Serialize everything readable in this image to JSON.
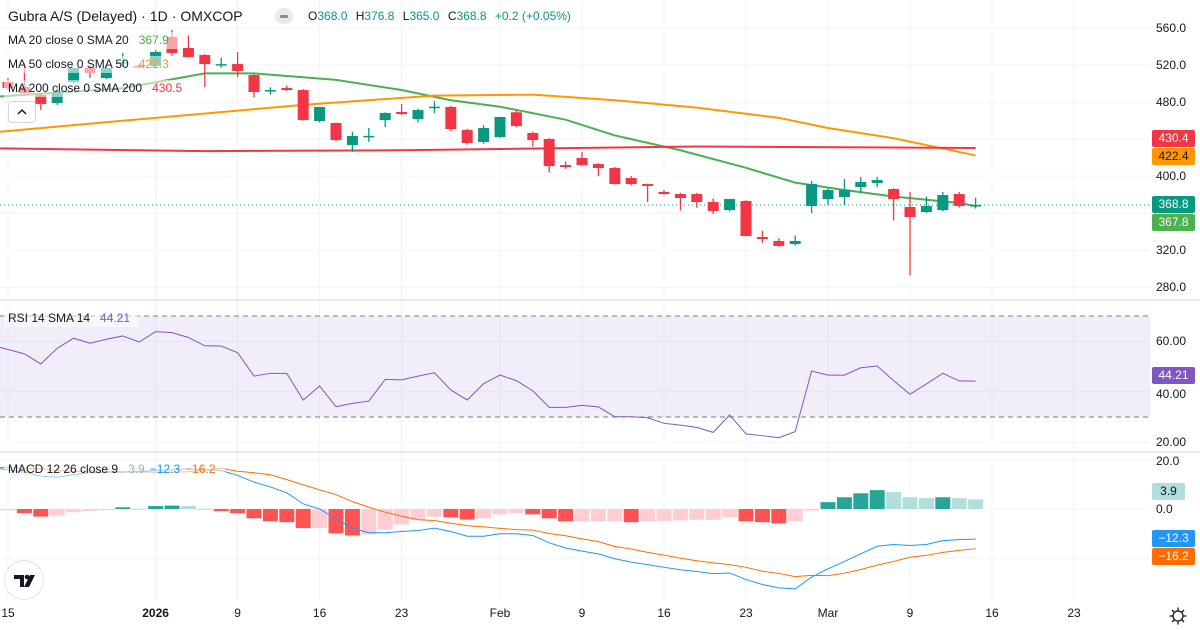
{
  "header": {
    "symbol": "Gubra A/S (Delayed)",
    "separator": "·",
    "interval": "1D",
    "exchange": "OMXCOP",
    "ohlc": {
      "o_label": "O",
      "o": "368.0",
      "h_label": "H",
      "h": "376.8",
      "l_label": "L",
      "l": "365.0",
      "c_label": "C",
      "c": "368.8",
      "change": "+0.2 (+0.05%)"
    }
  },
  "legends": {
    "ma": [
      {
        "label": "MA 20 close 0 SMA 20",
        "value": "367.9",
        "color": "#4caf50"
      },
      {
        "label": "MA 50 close 0 SMA 50",
        "value": "422.3",
        "color": "#ff9800"
      },
      {
        "label": "MA 200 close 0 SMA 200",
        "value": "430.5",
        "color": "#f23645"
      }
    ],
    "rsi": {
      "label": "RSI 14 SMA 14",
      "value": "44.21",
      "color": "#7e57c2"
    },
    "macd": {
      "label": "MACD 12 26 close 9",
      "hist": "3.9",
      "macd": "−12.3",
      "signal": "−16.2"
    }
  },
  "axes": {
    "price_ticks": [
      "560.0",
      "520.0",
      "480.0",
      "400.0",
      "320.0",
      "280.0"
    ],
    "rsi_ticks": [
      "60.00",
      "40.00",
      "20.00"
    ],
    "macd_ticks": [
      "20.0",
      "0.0"
    ],
    "time_ticks": [
      {
        "date": "2025-12-15",
        "label": "15"
      },
      {
        "date": "2026-01-02",
        "label": "2026",
        "bold": true
      },
      {
        "date": "2026-01-09",
        "label": "9"
      },
      {
        "date": "2026-01-16",
        "label": "16"
      },
      {
        "date": "2026-01-23",
        "label": "23"
      },
      {
        "date": "2026-02-02",
        "label": "Feb"
      },
      {
        "date": "2026-02-09",
        "label": "9"
      },
      {
        "date": "2026-02-16",
        "label": "16"
      },
      {
        "date": "2026-02-23",
        "label": "23"
      },
      {
        "date": "2026-03-02",
        "label": "Mar"
      },
      {
        "date": "2026-03-09",
        "label": "9"
      },
      {
        "date": "2026-03-16",
        "label": "16"
      },
      {
        "date": "2026-03-23",
        "label": "23"
      }
    ]
  },
  "badges": {
    "ma200": {
      "text": "430.4",
      "bg": "#f23645",
      "fg": "#ffffff"
    },
    "ma50": {
      "text": "422.4",
      "bg": "#ff9800",
      "fg": "#131722"
    },
    "last": {
      "text": "368.8",
      "bg": "#089981",
      "fg": "#ffffff"
    },
    "ma20": {
      "text": "367.8",
      "bg": "#4caf50",
      "fg": "#ffffff"
    },
    "rsi": {
      "text": "44.21",
      "bg": "#7e57c2",
      "fg": "#ffffff"
    },
    "hist": {
      "text": "3.9",
      "bg": "#b2dfdb",
      "fg": "#131722"
    },
    "macd": {
      "text": "−12.3",
      "bg": "#2196f3",
      "fg": "#ffffff"
    },
    "signal": {
      "text": "−16.2",
      "bg": "#ff6d00",
      "fg": "#ffffff"
    }
  },
  "colors": {
    "up": "#089981",
    "down": "#f23645",
    "ma20": "#4caf50",
    "ma50": "#ff9800",
    "ma200": "#f23645",
    "rsi": "#7e57c2",
    "macd": "#2196f3",
    "signal": "#ff6d00",
    "hist_up_strong": "#26a69a",
    "hist_up_weak": "#b2dfdb",
    "hist_down_strong": "#ff5252",
    "hist_down_weak": "#ffcdd2"
  },
  "icons": {
    "logo": "tradingview-logo",
    "settings": "gear-icon",
    "collapse": "chevron-up-icon",
    "visibility": "eye-toggle-icon"
  },
  "chart_data": [
    {
      "type": "candlestick",
      "pane": "price",
      "ylim": [
        280,
        560
      ],
      "grid": true,
      "last_price": 368.8,
      "dates": [
        "2025-12-15",
        "2025-12-16",
        "2025-12-17",
        "2025-12-18",
        "2025-12-19",
        "2025-12-22",
        "2025-12-23",
        "2025-12-29",
        "2025-12-30",
        "2026-01-02",
        "2026-01-05",
        "2026-01-06",
        "2026-01-07",
        "2026-01-08",
        "2026-01-09",
        "2026-01-12",
        "2026-01-13",
        "2026-01-14",
        "2026-01-15",
        "2026-01-16",
        "2026-01-19",
        "2026-01-20",
        "2026-01-21",
        "2026-01-22",
        "2026-01-23",
        "2026-01-26",
        "2026-01-27",
        "2026-01-28",
        "2026-01-29",
        "2026-01-30",
        "2026-02-02",
        "2026-02-03",
        "2026-02-04",
        "2026-02-05",
        "2026-02-06",
        "2026-02-09",
        "2026-02-10",
        "2026-02-11",
        "2026-02-12",
        "2026-02-13",
        "2026-02-16",
        "2026-02-17",
        "2026-02-18",
        "2026-02-19",
        "2026-02-20",
        "2026-02-23",
        "2026-02-24",
        "2026-02-25",
        "2026-02-26",
        "2026-02-27",
        "2026-03-02",
        "2026-03-03",
        "2026-03-04",
        "2026-03-05",
        "2026-03-06",
        "2026-03-09",
        "2026-03-10",
        "2026-03-11",
        "2026-03-12",
        "2026-03-13"
      ],
      "ohlc": [
        [
          501.7,
          506,
          493,
          495.2
        ],
        [
          496.3,
          522,
          488,
          489.8
        ],
        [
          487.6,
          490,
          471.4,
          477.9
        ],
        [
          479,
          496,
          477,
          490.9
        ],
        [
          501.7,
          517,
          500,
          516.8
        ],
        [
          516.8,
          520,
          506,
          511.4
        ],
        [
          506,
          519,
          505,
          516.8
        ],
        [
          522.2,
          533,
          518,
          523.3
        ],
        [
          519,
          521,
          517,
          517.9
        ],
        [
          519,
          536,
          517,
          534.1
        ],
        [
          550.3,
          558,
          530,
          533
        ],
        [
          538.4,
          552,
          528,
          528.7
        ],
        [
          530.8,
          532,
          496,
          521.1
        ],
        [
          520,
          528,
          517,
          521
        ],
        [
          521.1,
          534,
          507,
          513.6
        ],
        [
          509.2,
          510,
          485,
          490.9
        ],
        [
          492,
          496,
          488,
          493
        ],
        [
          495.2,
          498,
          492,
          493
        ],
        [
          493,
          494,
          460,
          460.6
        ],
        [
          459.6,
          473,
          458,
          474.7
        ],
        [
          457.4,
          458,
          438,
          439
        ],
        [
          433.6,
          448,
          426,
          443.4
        ],
        [
          442.3,
          452,
          437,
          443.5
        ],
        [
          460.6,
          469,
          453,
          468.2
        ],
        [
          469.3,
          478,
          466,
          467.1
        ],
        [
          461.7,
          473,
          458,
          471.4
        ],
        [
          474,
          481,
          468,
          475
        ],
        [
          474.7,
          476,
          449,
          450.9
        ],
        [
          449.8,
          451,
          434,
          435.8
        ],
        [
          436.9,
          455,
          435,
          452
        ],
        [
          442.3,
          464,
          441,
          463.9
        ],
        [
          469,
          471,
          453,
          454.2
        ],
        [
          446.6,
          448,
          432,
          439
        ],
        [
          440.1,
          441,
          404,
          410.9
        ],
        [
          412,
          416,
          408,
          409.9
        ],
        [
          419.6,
          426,
          411,
          412
        ],
        [
          413.1,
          414,
          400,
          408.8
        ],
        [
          408.8,
          410,
          391,
          391.5
        ],
        [
          398,
          400,
          390,
          391.5
        ],
        [
          391.5,
          392,
          372,
          389.4
        ],
        [
          382.9,
          385,
          380,
          380.7
        ],
        [
          380.7,
          382,
          363,
          376.4
        ],
        [
          380.7,
          382,
          366,
          372.1
        ],
        [
          372.1,
          376,
          359,
          362.4
        ],
        [
          363.4,
          375,
          362,
          375.3
        ],
        [
          373.2,
          374,
          335,
          335.4
        ],
        [
          334.3,
          341,
          328,
          332.1
        ],
        [
          330,
          333,
          324,
          324.6
        ],
        [
          326.7,
          336,
          325,
          330
        ],
        [
          367.8,
          395,
          360,
          391.5
        ],
        [
          375.3,
          387,
          369,
          385
        ],
        [
          377.5,
          397,
          369,
          385
        ],
        [
          388.3,
          399,
          382,
          393.7
        ],
        [
          392.6,
          399,
          388,
          395.8
        ],
        [
          386.1,
          387,
          352,
          375.3
        ],
        [
          366.7,
          382.9,
          293,
          355.9
        ],
        [
          361.3,
          378,
          360,
          367.8
        ],
        [
          363.4,
          383,
          362,
          379.6
        ],
        [
          380.7,
          383,
          366,
          367.8
        ],
        [
          368,
          376.8,
          365,
          368.8
        ]
      ],
      "series": [
        {
          "name": "MA 20",
          "points": [
            [
              "2025-12-15",
              486
            ],
            [
              "2025-12-29",
              495
            ],
            [
              "2026-01-07",
              511
            ],
            [
              "2026-01-12",
              511
            ],
            [
              "2026-01-19",
              504
            ],
            [
              "2026-01-23",
              493
            ],
            [
              "2026-01-28",
              482
            ],
            [
              "2026-02-02",
              475
            ],
            [
              "2026-02-06",
              461
            ],
            [
              "2026-02-11",
              444
            ],
            [
              "2026-02-17",
              428
            ],
            [
              "2026-02-23",
              409
            ],
            [
              "2026-02-26",
              393
            ],
            [
              "2026-03-03",
              385
            ],
            [
              "2026-03-06",
              378
            ],
            [
              "2026-03-12",
              371
            ],
            [
              "2026-03-13",
              367.8
            ]
          ]
        },
        {
          "name": "MA 50",
          "points": [
            [
              "2025-12-15",
              448
            ],
            [
              "2026-01-02",
              463
            ],
            [
              "2026-01-15",
              477
            ],
            [
              "2026-01-27",
              487
            ],
            [
              "2026-02-04",
              488
            ],
            [
              "2026-02-11",
              482
            ],
            [
              "2026-02-18",
              474
            ],
            [
              "2026-02-25",
              463
            ],
            [
              "2026-03-02",
              452
            ],
            [
              "2026-03-06",
              441
            ],
            [
              "2026-03-13",
              422.4
            ]
          ]
        },
        {
          "name": "MA 200",
          "points": [
            [
              "2025-12-15",
              430
            ],
            [
              "2026-01-07",
              427
            ],
            [
              "2026-01-23",
              428
            ],
            [
              "2026-02-18",
              432
            ],
            [
              "2026-03-13",
              430.4
            ]
          ]
        }
      ]
    },
    {
      "type": "line",
      "pane": "rsi",
      "ylim": [
        15,
        75
      ],
      "band": [
        30,
        70
      ],
      "series": [
        {
          "name": "RSI 14",
          "values": [
            57.6,
            55,
            51,
            57.2,
            61.2,
            59.2,
            60.8,
            62.1,
            59.7,
            63.8,
            63.4,
            61.5,
            58.2,
            58.1,
            55.5,
            46.2,
            47.3,
            47.3,
            36.7,
            42.3,
            34.1,
            35.4,
            36.3,
            44.9,
            44.7,
            46.2,
            47.5,
            40.7,
            36.7,
            43.2,
            46.6,
            44.4,
            40.4,
            33.8,
            33.8,
            34.6,
            34,
            30.1,
            30.1,
            29.7,
            27.5,
            26.8,
            25.9,
            23.9,
            30.8,
            23.3,
            22.6,
            21.8,
            24.2,
            48.2,
            46.6,
            46.6,
            49.5,
            50.2,
            44.4,
            39,
            43.1,
            47.3,
            44.3,
            44.21
          ]
        }
      ]
    },
    {
      "type": "bar",
      "pane": "macd",
      "ylim": [
        -38,
        22
      ],
      "histogram": [
        -0.5,
        -1.7,
        -3.1,
        -2.7,
        -1.3,
        -0.8,
        -0.5,
        0.7,
        0.1,
        1.2,
        1.4,
        1.2,
        0.1,
        -0.9,
        -1.7,
        -3.8,
        -5,
        -5.4,
        -7.8,
        -7.8,
        -9.9,
        -10.8,
        -10.4,
        -8.4,
        -6.3,
        -4.4,
        -3.1,
        -3.4,
        -4.3,
        -3.8,
        -2.2,
        -1.7,
        -2.2,
        -3.8,
        -5,
        -5,
        -5,
        -5,
        -5.4,
        -5,
        -5,
        -4.7,
        -4.4,
        -4.4,
        -3.4,
        -5,
        -5.4,
        -5.9,
        -5,
        -0.7,
        2.8,
        4.8,
        6.4,
        7.7,
        6.9,
        4.8,
        4.4,
        4.8,
        4.4,
        3.9
      ],
      "series": [
        {
          "name": "MACD",
          "values": [
            16.5,
            15,
            13.4,
            13,
            14,
            14.8,
            15,
            15,
            15.3,
            15.7,
            16,
            16.4,
            16,
            15.7,
            13.7,
            11,
            9,
            6.6,
            2.1,
            0,
            -4,
            -7.8,
            -9.7,
            -9.7,
            -9.2,
            -8.8,
            -7.8,
            -9.2,
            -11.1,
            -11.1,
            -10.1,
            -10.1,
            -10.8,
            -13.8,
            -15.9,
            -17.2,
            -18.3,
            -20.3,
            -21.7,
            -22.7,
            -23.8,
            -24.8,
            -25.5,
            -26.4,
            -26.1,
            -28.8,
            -30.8,
            -32.2,
            -32.6,
            -27.8,
            -24.4,
            -21.4,
            -18.3,
            -15.2,
            -14.5,
            -14.9,
            -14.5,
            -12.9,
            -12.5,
            -12.3
          ]
        },
        {
          "name": "Signal",
          "values": [
            17,
            16.7,
            16.5,
            15.7,
            15.3,
            15.5,
            15.5,
            15.2,
            15.1,
            15,
            15,
            15.2,
            15.9,
            16.6,
            15.4,
            14.8,
            14,
            12,
            9.9,
            7.8,
            5.9,
            3,
            0.7,
            -1.3,
            -2.9,
            -4.4,
            -4.7,
            -5.8,
            -6.8,
            -7.3,
            -7.9,
            -8.4,
            -8.6,
            -10,
            -10.9,
            -12.2,
            -13.3,
            -15.3,
            -16.3,
            -17.7,
            -18.8,
            -20.1,
            -21.1,
            -22,
            -22.7,
            -23.8,
            -25.4,
            -26.3,
            -27.6,
            -27.1,
            -27.2,
            -26.2,
            -24.7,
            -22.9,
            -21.4,
            -19.7,
            -18.9,
            -17.7,
            -16.9,
            -16.2
          ]
        }
      ]
    }
  ]
}
